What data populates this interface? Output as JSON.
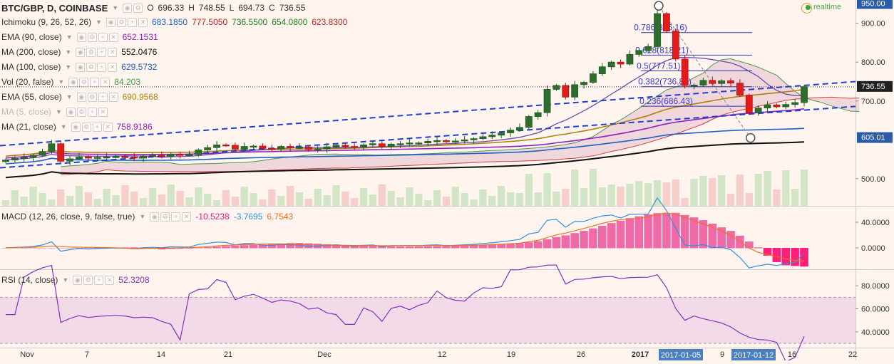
{
  "header": {
    "symbol": "BTC/GBP, D, COINBASE",
    "ohlc": {
      "o_label": "O",
      "o": "696.33",
      "h_label": "H",
      "h": "748.55",
      "l_label": "L",
      "l": "694.73",
      "c_label": "C",
      "c": "736.55"
    },
    "realtime": "realtime"
  },
  "indicators": [
    {
      "name": "Ichimoku (9, 26, 52, 26)",
      "values": [
        {
          "v": "683.1850",
          "color": "#2060c0"
        },
        {
          "v": "777.5050",
          "color": "#c02020"
        },
        {
          "v": "736.5500",
          "color": "#208020"
        },
        {
          "v": "654.0800",
          "color": "#208020"
        },
        {
          "v": "623.8300",
          "color": "#c02020"
        }
      ]
    },
    {
      "name": "EMA (90, close)",
      "values": [
        {
          "v": "652.1531",
          "color": "#9020c0"
        }
      ]
    },
    {
      "name": "MA (200, close)",
      "values": [
        {
          "v": "552.0476",
          "color": "#111111"
        }
      ]
    },
    {
      "name": "MA (100, close)",
      "values": [
        {
          "v": "629.5732",
          "color": "#2060c0"
        }
      ]
    },
    {
      "name": "Vol (20, false)",
      "values": [
        {
          "v": "84.203",
          "color": "#40a040"
        }
      ]
    },
    {
      "name": "EMA (55, close)",
      "values": [
        {
          "v": "690.9568",
          "color": "#b08010"
        }
      ]
    },
    {
      "name": "MA (5, close)",
      "values": [],
      "faded": true
    },
    {
      "name": "MA (21, close)",
      "values": [
        {
          "v": "758.9186",
          "color": "#9020c0"
        }
      ]
    }
  ],
  "macd_legend": {
    "name": "MACD (12, 26, close, 9, false, true)",
    "values": [
      {
        "v": "-10.5238",
        "color": "#e0207a"
      },
      {
        "v": "-3.7695",
        "color": "#3090e0"
      },
      {
        "v": "6.7543",
        "color": "#f07020"
      }
    ]
  },
  "rsi_legend": {
    "name": "RSI (14, close)",
    "values": [
      {
        "v": "52.3208",
        "color": "#8030c0"
      }
    ]
  },
  "price_axis": {
    "ticks": [
      "900.00",
      "800.00",
      "700.00",
      "500.00"
    ],
    "current": "736.55",
    "top_label": "950.00",
    "low_label": "605.01"
  },
  "macd_axis": {
    "ticks": [
      "40.0000",
      "0.0000"
    ]
  },
  "rsi_axis": {
    "ticks": [
      "80.0000",
      "60.0000",
      "40.0000"
    ]
  },
  "x_axis": {
    "labels": [
      "Nov",
      "7",
      "14",
      "21",
      "Dec",
      "12",
      "19",
      "26",
      "2017",
      "9",
      "16",
      "22"
    ],
    "highlight": [
      "2017-01-05",
      "2017-01-12"
    ]
  },
  "fib_levels": [
    {
      "label": "0.786(876.16)",
      "price": 876.16
    },
    {
      "label": "0.618(818.21)",
      "price": 818.21
    },
    {
      "label": "0.5(777.51)",
      "price": 777.51
    },
    {
      "label": "0.382(736.80)",
      "price": 736.8
    },
    {
      "label": "0.236(686.43)",
      "price": 686.43
    }
  ],
  "chart_data": {
    "type": "candlestick",
    "title": "BTC/GBP, D, COINBASE",
    "ylim": [
      430,
      960
    ],
    "candle_closes": [
      548,
      552,
      555,
      560,
      570,
      590,
      545,
      551,
      556,
      553,
      555,
      556,
      557,
      556,
      553,
      558,
      560,
      558,
      563,
      562,
      562,
      574,
      580,
      587,
      586,
      576,
      583,
      584,
      578,
      577,
      583,
      580,
      581,
      575,
      577,
      582,
      586,
      583,
      582,
      587,
      590,
      583,
      589,
      590,
      592,
      592,
      596,
      598,
      595,
      597,
      600,
      603,
      608,
      612,
      618,
      625,
      632,
      660,
      670,
      730,
      740,
      710,
      742,
      748,
      770,
      788,
      800,
      795,
      820,
      830,
      840,
      925,
      880,
      808,
      740,
      741,
      753,
      745,
      752,
      746,
      715,
      670,
      682,
      690,
      685,
      691,
      696,
      737
    ]
  }
}
